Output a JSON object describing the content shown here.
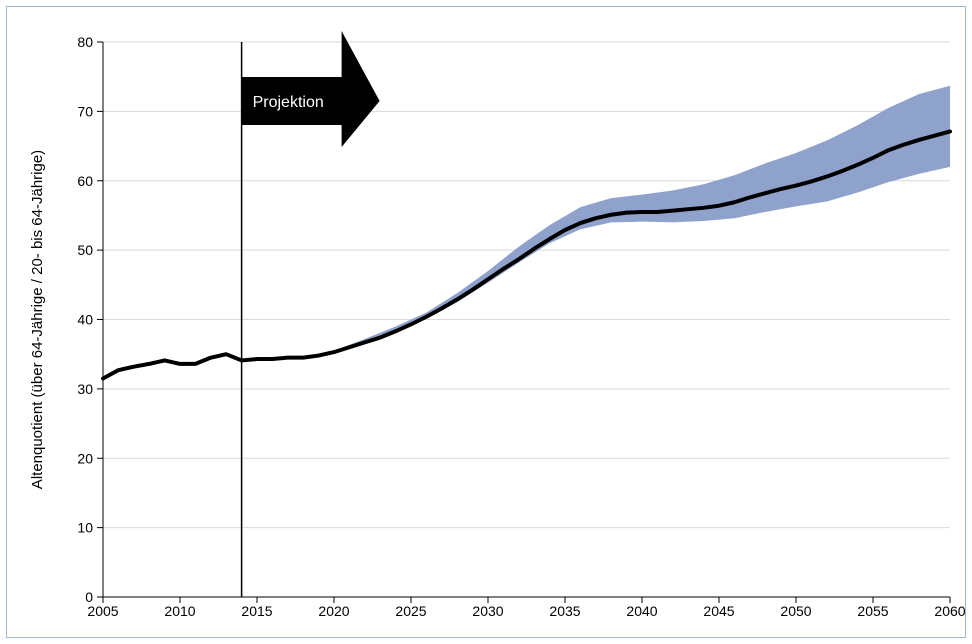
{
  "chart_data": {
    "type": "line",
    "title": "",
    "xlabel": "",
    "ylabel": "Altenquotient (über 64-Jährige / 20- bis 64-Jährige)",
    "xlim": [
      2005,
      2060
    ],
    "ylim": [
      0,
      80
    ],
    "x_ticks": [
      2005,
      2010,
      2015,
      2020,
      2025,
      2030,
      2035,
      2040,
      2045,
      2050,
      2055,
      2060
    ],
    "y_ticks": [
      0,
      10,
      20,
      30,
      40,
      50,
      60,
      70,
      80
    ],
    "grid": "horizontal",
    "projection_start": 2014,
    "annotation": "Projektion",
    "colors": {
      "line": "#000000",
      "band": "#8fa2cc",
      "grid": "#d9d9d9",
      "axis": "#000000"
    },
    "series": [
      {
        "x": [
          2005,
          2006,
          2007,
          2008,
          2009,
          2010,
          2011,
          2012,
          2013,
          2014,
          2015,
          2016,
          2017,
          2018,
          2019,
          2020,
          2021,
          2022,
          2023,
          2024,
          2025,
          2026,
          2027,
          2028,
          2029,
          2030,
          2031,
          2032,
          2033,
          2034,
          2035,
          2036,
          2037,
          2038,
          2039,
          2040,
          2041,
          2042,
          2043,
          2044,
          2045,
          2046,
          2047,
          2048,
          2049,
          2050,
          2051,
          2052,
          2053,
          2054,
          2055,
          2056,
          2057,
          2058,
          2059,
          2060
        ],
        "values": [
          31.5,
          32.7,
          33.2,
          33.6,
          34.1,
          33.6,
          33.6,
          34.5,
          35.0,
          34.1,
          34.3,
          34.3,
          34.5,
          34.5,
          34.8,
          35.3,
          36.0,
          36.7,
          37.4,
          38.3,
          39.3,
          40.4,
          41.6,
          42.9,
          44.3,
          45.8,
          47.3,
          48.7,
          50.2,
          51.6,
          52.9,
          53.9,
          54.6,
          55.1,
          55.4,
          55.5,
          55.5,
          55.7,
          55.9,
          56.1,
          56.4,
          56.9,
          57.6,
          58.2,
          58.8,
          59.3,
          59.9,
          60.6,
          61.4,
          62.3,
          63.3,
          64.4,
          65.2,
          65.9,
          66.5,
          67.1
        ]
      }
    ],
    "band": {
      "x": [
        2014,
        2016,
        2018,
        2020,
        2022,
        2024,
        2026,
        2028,
        2030,
        2032,
        2034,
        2036,
        2038,
        2040,
        2042,
        2044,
        2046,
        2048,
        2050,
        2052,
        2054,
        2056,
        2058,
        2060
      ],
      "lower": [
        34.1,
        34.2,
        34.4,
        35.2,
        36.5,
        38.2,
        40.2,
        42.5,
        45.3,
        48.2,
        51.0,
        53.0,
        54.0,
        54.1,
        54.0,
        54.2,
        54.6,
        55.5,
        56.3,
        57.0,
        58.3,
        59.8,
        61.0,
        62.0
      ],
      "upper": [
        34.1,
        34.4,
        34.7,
        35.5,
        37.2,
        39.0,
        41.0,
        43.8,
        47.0,
        50.5,
        53.6,
        56.2,
        57.5,
        58.0,
        58.6,
        59.5,
        60.8,
        62.5,
        64.0,
        65.8,
        68.0,
        70.5,
        72.5,
        73.7
      ]
    }
  }
}
